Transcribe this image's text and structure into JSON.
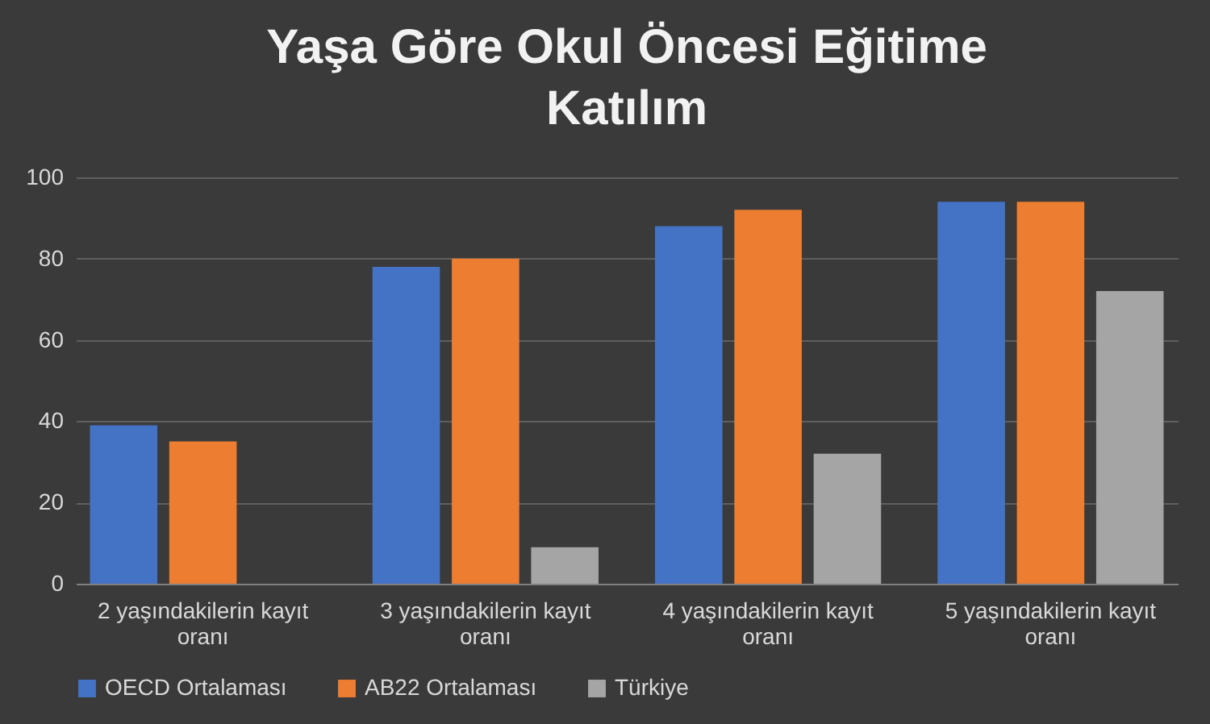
{
  "chart_data": {
    "type": "bar",
    "title": "Yaşa Göre Okul Öncesi Eğitime Katılım",
    "categories": [
      "2 yaşındakilerin kayıt oranı",
      "3 yaşındakilerin kayıt oranı",
      "4 yaşındakilerin kayıt oranı",
      "5 yaşındakilerin kayıt oranı"
    ],
    "series": [
      {
        "name": "OECD Ortalaması",
        "color": "#4472c4",
        "values": [
          39,
          78,
          88,
          94
        ]
      },
      {
        "name": "AB22 Ortalaması",
        "color": "#ed7d31",
        "values": [
          35,
          80,
          92,
          94
        ]
      },
      {
        "name": "Türkiye",
        "color": "#a5a5a5",
        "values": [
          0,
          9,
          32,
          72
        ]
      }
    ],
    "ylim": [
      0,
      100
    ],
    "yticks": [
      0,
      20,
      40,
      60,
      80,
      100
    ],
    "grid": "y",
    "legend": "bottom"
  }
}
